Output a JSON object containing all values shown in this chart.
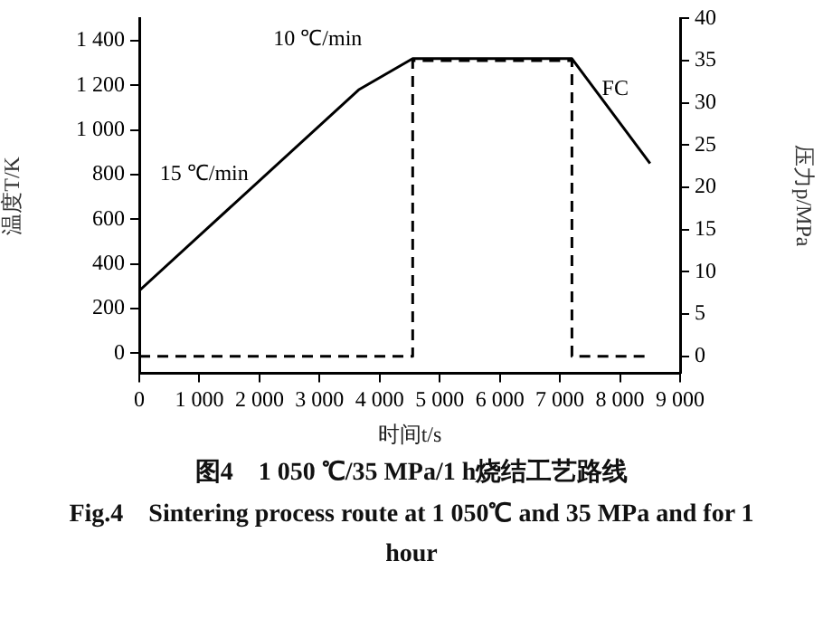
{
  "chart_data": {
    "type": "line",
    "title": "图4　1 050 ℃/35 MPa/1 h烧结工艺路线",
    "subtitle": "Fig.4　Sintering process route at 1 050℃ and 35 MPa and for 1 hour",
    "xlabel": "时间t/s",
    "ylabel": "温度T/K",
    "y2label": "压力p/MPa",
    "annotations": [
      "15 ℃/min",
      "10 ℃/min",
      "FC"
    ],
    "series": [
      {
        "x": [
          0,
          3650,
          4550,
          7200,
          8500
        ],
        "values": [
          280,
          1180,
          1320,
          1320,
          850
        ],
        "color": "#000000",
        "line_style": "solid"
      },
      {
        "axis": "y2",
        "x": [
          0,
          4550,
          4550,
          7200,
          7200,
          8500
        ],
        "values": [
          0,
          0,
          35,
          35,
          0,
          0
        ],
        "color": "#000000",
        "line_style": "dashed"
      }
    ],
    "xlim": [
      0,
      9000
    ],
    "xticks": [
      0,
      1000,
      2000,
      3000,
      4000,
      5000,
      6000,
      7000,
      8000,
      9000
    ],
    "ylim": [
      -90,
      1500
    ],
    "yticks": [
      0,
      200,
      400,
      600,
      800,
      1000,
      1200,
      1400
    ],
    "y2lim": [
      -2,
      40
    ],
    "y2ticks": [
      0,
      5,
      10,
      15,
      20,
      25,
      30,
      35,
      40
    ],
    "legend": false,
    "grid": false,
    "marker": "none"
  }
}
